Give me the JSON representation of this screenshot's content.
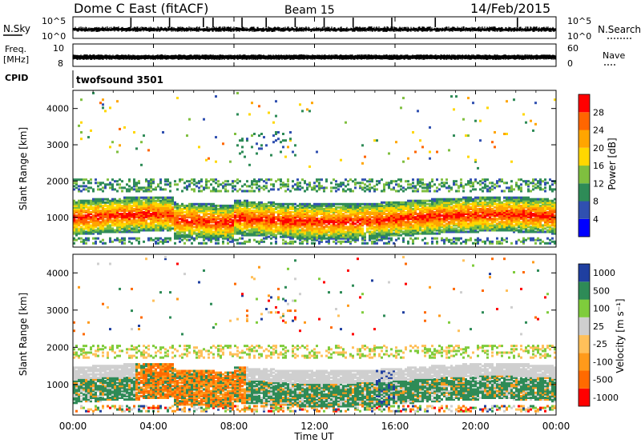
{
  "header": {
    "title": "Dome C East (fitACF)",
    "beam": "Beam 15",
    "date": "14/Feb/2015"
  },
  "strips": {
    "nsky_label": "N.Sky",
    "nsky_ticks": [
      "10^5",
      "10^0"
    ],
    "nsearch_label": "N.Search",
    "nsearch_ticks": [
      "10^5",
      "10^0"
    ],
    "freq_label": "Freq.",
    "freq_unit": "[MHz]",
    "freq_ticks": [
      "10",
      "8"
    ],
    "nave_label": "Nave",
    "nave_ticks": [
      "60",
      "0"
    ],
    "cpid_label": "CPID",
    "cpid_value": "twofsound 3501"
  },
  "chart_data": [
    {
      "type": "heatmap",
      "parameter": "power",
      "ylabel": "Slant Range [km]",
      "y_ticks": [
        "4000",
        "3000",
        "2000",
        "1000"
      ],
      "y_tick_values": [
        4000,
        3000,
        2000,
        1000
      ],
      "ylim": [
        180,
        4500
      ],
      "xlim": [
        0,
        24
      ],
      "colorbar": {
        "label": "Power [dB]",
        "ticks": [
          "28",
          "24",
          "20",
          "16",
          "12",
          "8",
          "4"
        ],
        "tick_values": [
          28,
          24,
          20,
          16,
          12,
          8,
          4
        ],
        "range": [
          0,
          30
        ],
        "colors": [
          "#0000ff",
          "#3050b0",
          "#2e8b57",
          "#7fbf3f",
          "#ffd700",
          "#ffa500",
          "#ff6600",
          "#ff0000"
        ]
      }
    },
    {
      "type": "heatmap",
      "parameter": "velocity",
      "ylabel": "Slant Range [km]",
      "y_ticks": [
        "4000",
        "3000",
        "2000",
        "1000"
      ],
      "y_tick_values": [
        4000,
        3000,
        2000,
        1000
      ],
      "ylim": [
        180,
        4500
      ],
      "xlim": [
        0,
        24
      ],
      "colorbar": {
        "label": "Velocity [m s⁻¹]",
        "ticks": [
          "1000",
          "500",
          "100",
          "25",
          "-25",
          "-100",
          "-500",
          "-1000"
        ],
        "colors": [
          "#ff0000",
          "#ff6a00",
          "#ff9a1a",
          "#ffc05a",
          "#cfcfcf",
          "#7fcc3c",
          "#2e8b57",
          "#1f3fa0"
        ]
      }
    }
  ],
  "xaxis": {
    "label": "Time UT",
    "ticks": [
      "00:00",
      "04:00",
      "08:00",
      "12:00",
      "16:00",
      "20:00",
      "00:00"
    ],
    "tick_values": [
      0,
      4,
      8,
      12,
      16,
      20,
      24
    ]
  }
}
